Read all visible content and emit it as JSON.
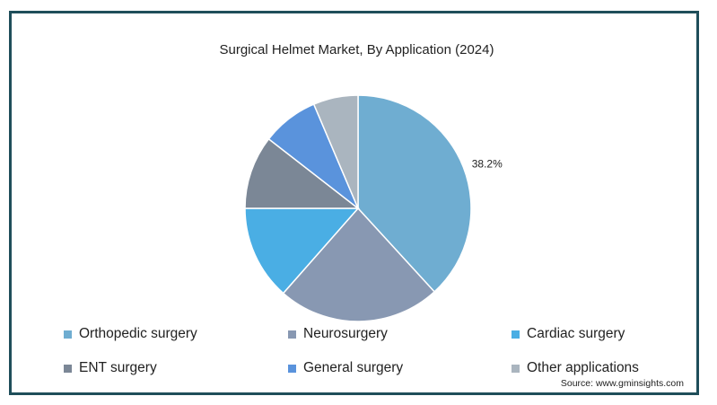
{
  "chart_data": {
    "type": "pie",
    "title": "Surgical Helmet Market, By Application (2024)",
    "slices": [
      {
        "label": "Orthopedic surgery",
        "value": 38.2,
        "color": "#6fadd1",
        "data_label": "38.2%"
      },
      {
        "label": "Neurosurgery",
        "value": 23.3,
        "color": "#8898b2"
      },
      {
        "label": "Cardiac surgery",
        "value": 13.5,
        "color": "#4aaee4"
      },
      {
        "label": "ENT surgery",
        "value": 10.5,
        "color": "#7b8796"
      },
      {
        "label": "General surgery",
        "value": 8.1,
        "color": "#5a93dc"
      },
      {
        "label": "Other applications",
        "value": 6.4,
        "color": "#aab5bf"
      }
    ],
    "legend_placement": "bottom"
  },
  "source": "Source: www.gminsights.com"
}
